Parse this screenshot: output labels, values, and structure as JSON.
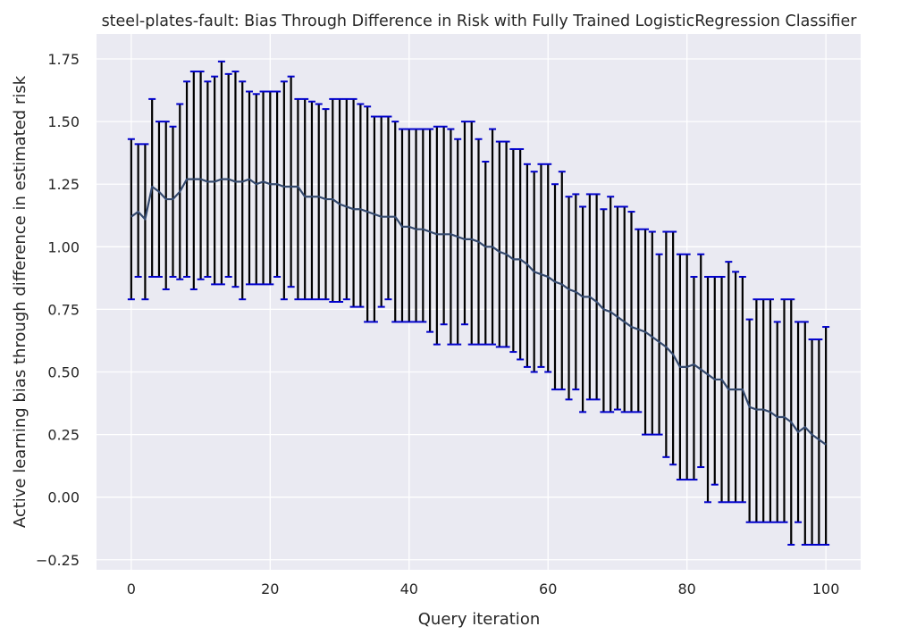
{
  "chart_data": {
    "type": "line",
    "title": "steel-plates-fault: Bias Through Difference in Risk with Fully Trained LogisticRegression Classifier",
    "xlabel": "Query iteration",
    "ylabel": "Active learning bias through difference in estimated risk",
    "xlim": [
      -5,
      105
    ],
    "ylim": [
      -0.29,
      1.85
    ],
    "grid": true,
    "xticks": [
      0,
      20,
      40,
      60,
      80,
      100
    ],
    "yticks": [
      -0.25,
      0.0,
      0.25,
      0.5,
      0.75,
      1.0,
      1.25,
      1.5,
      1.75
    ],
    "xtick_labels": [
      "0",
      "20",
      "40",
      "60",
      "80",
      "100"
    ],
    "ytick_labels": [
      "−0.25",
      "0.00",
      "0.25",
      "0.50",
      "0.75",
      "1.00",
      "1.25",
      "1.50",
      "1.75"
    ],
    "colors": {
      "background": "#EAEAF2",
      "grid": "#FFFFFF",
      "mean_line": "#34496E",
      "error_bar": "#000000",
      "cap": "#0000CC"
    },
    "series": [
      {
        "x": [
          0,
          1,
          2,
          3,
          4,
          5,
          6,
          7,
          8,
          9,
          10,
          11,
          12,
          13,
          14,
          15,
          16,
          17,
          18,
          19,
          20,
          21,
          22,
          23,
          24,
          25,
          26,
          27,
          28,
          29,
          30,
          31,
          32,
          33,
          34,
          35,
          36,
          37,
          38,
          39,
          40,
          41,
          42,
          43,
          44,
          45,
          46,
          47,
          48,
          49,
          50,
          51,
          52,
          53,
          54,
          55,
          56,
          57,
          58,
          59,
          60,
          61,
          62,
          63,
          64,
          65,
          66,
          67,
          68,
          69,
          70,
          71,
          72,
          73,
          74,
          75,
          76,
          77,
          78,
          79,
          80,
          81,
          82,
          83,
          84,
          85,
          86,
          87,
          88,
          89,
          90,
          91,
          92,
          93,
          94,
          95,
          96,
          97,
          98,
          99,
          100
        ],
        "y": [
          1.12,
          1.14,
          1.11,
          1.24,
          1.22,
          1.19,
          1.19,
          1.22,
          1.27,
          1.27,
          1.27,
          1.26,
          1.26,
          1.27,
          1.27,
          1.26,
          1.26,
          1.27,
          1.25,
          1.26,
          1.25,
          1.25,
          1.24,
          1.24,
          1.24,
          1.2,
          1.2,
          1.2,
          1.19,
          1.19,
          1.17,
          1.16,
          1.15,
          1.15,
          1.14,
          1.13,
          1.12,
          1.12,
          1.12,
          1.08,
          1.08,
          1.07,
          1.07,
          1.06,
          1.05,
          1.05,
          1.05,
          1.04,
          1.03,
          1.03,
          1.02,
          1.0,
          1.0,
          0.98,
          0.97,
          0.95,
          0.95,
          0.93,
          0.9,
          0.89,
          0.88,
          0.86,
          0.85,
          0.83,
          0.82,
          0.8,
          0.8,
          0.78,
          0.75,
          0.74,
          0.72,
          0.7,
          0.68,
          0.67,
          0.66,
          0.64,
          0.62,
          0.6,
          0.57,
          0.52,
          0.52,
          0.53,
          0.51,
          0.49,
          0.47,
          0.47,
          0.43,
          0.43,
          0.43,
          0.36,
          0.35,
          0.35,
          0.34,
          0.32,
          0.32,
          0.3,
          0.26,
          0.28,
          0.25,
          0.23,
          0.21
        ],
        "upper": [
          1.43,
          1.41,
          1.41,
          1.59,
          1.5,
          1.5,
          1.48,
          1.57,
          1.66,
          1.7,
          1.7,
          1.66,
          1.68,
          1.74,
          1.69,
          1.7,
          1.66,
          1.62,
          1.61,
          1.62,
          1.62,
          1.62,
          1.66,
          1.68,
          1.59,
          1.59,
          1.58,
          1.57,
          1.55,
          1.59,
          1.59,
          1.59,
          1.59,
          1.57,
          1.56,
          1.52,
          1.52,
          1.52,
          1.5,
          1.47,
          1.47,
          1.47,
          1.47,
          1.47,
          1.48,
          1.48,
          1.47,
          1.43,
          1.5,
          1.5,
          1.43,
          1.34,
          1.47,
          1.42,
          1.42,
          1.39,
          1.39,
          1.33,
          1.3,
          1.33,
          1.33,
          1.25,
          1.3,
          1.2,
          1.21,
          1.16,
          1.21,
          1.21,
          1.15,
          1.2,
          1.16,
          1.16,
          1.14,
          1.07,
          1.07,
          1.06,
          0.97,
          1.06,
          1.06,
          0.97,
          0.97,
          0.88,
          0.97,
          0.88,
          0.88,
          0.88,
          0.94,
          0.9,
          0.88,
          0.71,
          0.79,
          0.79,
          0.79,
          0.7,
          0.79,
          0.79,
          0.7,
          0.7,
          0.63,
          0.63,
          0.68
        ],
        "lower": [
          0.79,
          0.88,
          0.79,
          0.88,
          0.88,
          0.83,
          0.88,
          0.87,
          0.88,
          0.83,
          0.87,
          0.88,
          0.85,
          0.85,
          0.88,
          0.84,
          0.79,
          0.85,
          0.85,
          0.85,
          0.85,
          0.88,
          0.79,
          0.84,
          0.79,
          0.79,
          0.79,
          0.79,
          0.79,
          0.78,
          0.78,
          0.79,
          0.76,
          0.76,
          0.7,
          0.7,
          0.76,
          0.79,
          0.7,
          0.7,
          0.7,
          0.7,
          0.7,
          0.66,
          0.61,
          0.69,
          0.61,
          0.61,
          0.69,
          0.61,
          0.61,
          0.61,
          0.61,
          0.6,
          0.6,
          0.58,
          0.55,
          0.52,
          0.5,
          0.52,
          0.5,
          0.43,
          0.43,
          0.39,
          0.43,
          0.34,
          0.39,
          0.39,
          0.34,
          0.34,
          0.35,
          0.34,
          0.34,
          0.34,
          0.25,
          0.25,
          0.25,
          0.16,
          0.13,
          0.07,
          0.07,
          0.07,
          0.12,
          -0.02,
          0.05,
          -0.02,
          -0.02,
          -0.02,
          -0.02,
          -0.1,
          -0.1,
          -0.1,
          -0.1,
          -0.1,
          -0.1,
          -0.19,
          -0.1,
          -0.19,
          -0.19,
          -0.19,
          -0.19
        ]
      }
    ]
  }
}
